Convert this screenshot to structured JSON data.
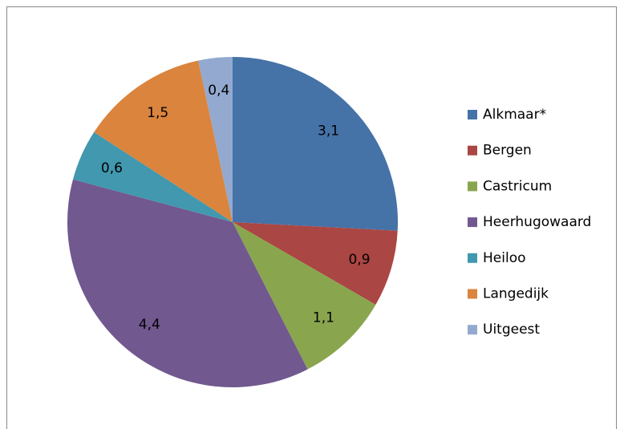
{
  "chart_data": {
    "type": "pie",
    "categories": [
      "Alkmaar*",
      "Bergen",
      "Castricum",
      "Heerhugowaard",
      "Heiloo",
      "Langedijk",
      "Uitgeest"
    ],
    "values": [
      3.1,
      0.9,
      1.1,
      4.4,
      0.6,
      1.5,
      0.4
    ],
    "value_labels": [
      "3,1",
      "0,9",
      "1,1",
      "4,4",
      "0,6",
      "1,5",
      "0,4"
    ],
    "colors": [
      "#4572a7",
      "#aa4643",
      "#89a54e",
      "#71588f",
      "#4198af",
      "#db843d",
      "#93a9cf"
    ],
    "legend": "right"
  }
}
